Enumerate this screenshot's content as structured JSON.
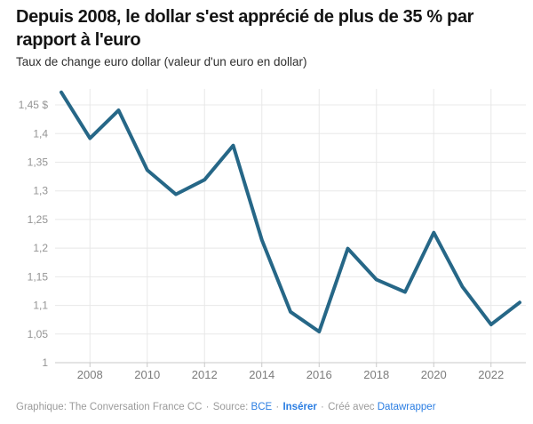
{
  "header": {
    "title": "Depuis 2008, le dollar s'est apprécié de plus de 35 % par rapport à l'euro",
    "subtitle": "Taux de change euro dollar (valeur d'un euro en dollar)"
  },
  "chart_data": {
    "type": "line",
    "title": "Depuis 2008, le dollar s'est apprécié de plus de 35 % par rapport à l'euro",
    "subtitle": "Taux de change euro dollar (valeur d'un euro en dollar)",
    "x": [
      2007,
      2008,
      2009,
      2010,
      2011,
      2012,
      2013,
      2014,
      2015,
      2016,
      2017,
      2018,
      2019,
      2020,
      2021,
      2022,
      2023
    ],
    "values": [
      1.4721,
      1.3917,
      1.4406,
      1.3362,
      1.2939,
      1.3194,
      1.3791,
      1.2141,
      1.0887,
      1.0541,
      1.1993,
      1.145,
      1.1234,
      1.2271,
      1.1326,
      1.0666,
      1.105
    ],
    "xlim": [
      2007,
      2023
    ],
    "ylim": [
      1.0,
      1.478
    ],
    "grid": true,
    "legend": "none",
    "y_unit": "$",
    "y_ticks": [
      {
        "value": 1.0,
        "label": "1"
      },
      {
        "value": 1.05,
        "label": "1,05"
      },
      {
        "value": 1.1,
        "label": "1,1"
      },
      {
        "value": 1.15,
        "label": "1,15"
      },
      {
        "value": 1.2,
        "label": "1,2"
      },
      {
        "value": 1.25,
        "label": "1,25"
      },
      {
        "value": 1.3,
        "label": "1,3"
      },
      {
        "value": 1.35,
        "label": "1,35"
      },
      {
        "value": 1.4,
        "label": "1,4"
      },
      {
        "value": 1.45,
        "label": "1,45 $"
      }
    ],
    "x_ticks": [
      {
        "value": 2008,
        "label": "2008"
      },
      {
        "value": 2010,
        "label": "2010"
      },
      {
        "value": 2012,
        "label": "2012"
      },
      {
        "value": 2014,
        "label": "2014"
      },
      {
        "value": 2016,
        "label": "2016"
      },
      {
        "value": 2018,
        "label": "2018"
      },
      {
        "value": 2020,
        "label": "2020"
      },
      {
        "value": 2022,
        "label": "2022"
      }
    ]
  },
  "footer": {
    "credit": "Graphique: The Conversation France CC",
    "separator": "·",
    "source_label": "Source:",
    "source_link": "BCE",
    "embed_link": "Insérer",
    "made_with": "Créé avec",
    "tool_link": "Datawrapper"
  },
  "colors": {
    "line": "#266787",
    "link": "#2a7de2",
    "title_text": "#141414",
    "subtitle_text": "#2e2e2e",
    "y_axis_label": "#949494",
    "x_axis_label": "#7c7c7c",
    "gridline": "#e8e8e8",
    "baseline": "#c8c8c8",
    "footer_text": "#9b9b9b",
    "background": "#ffffff"
  }
}
